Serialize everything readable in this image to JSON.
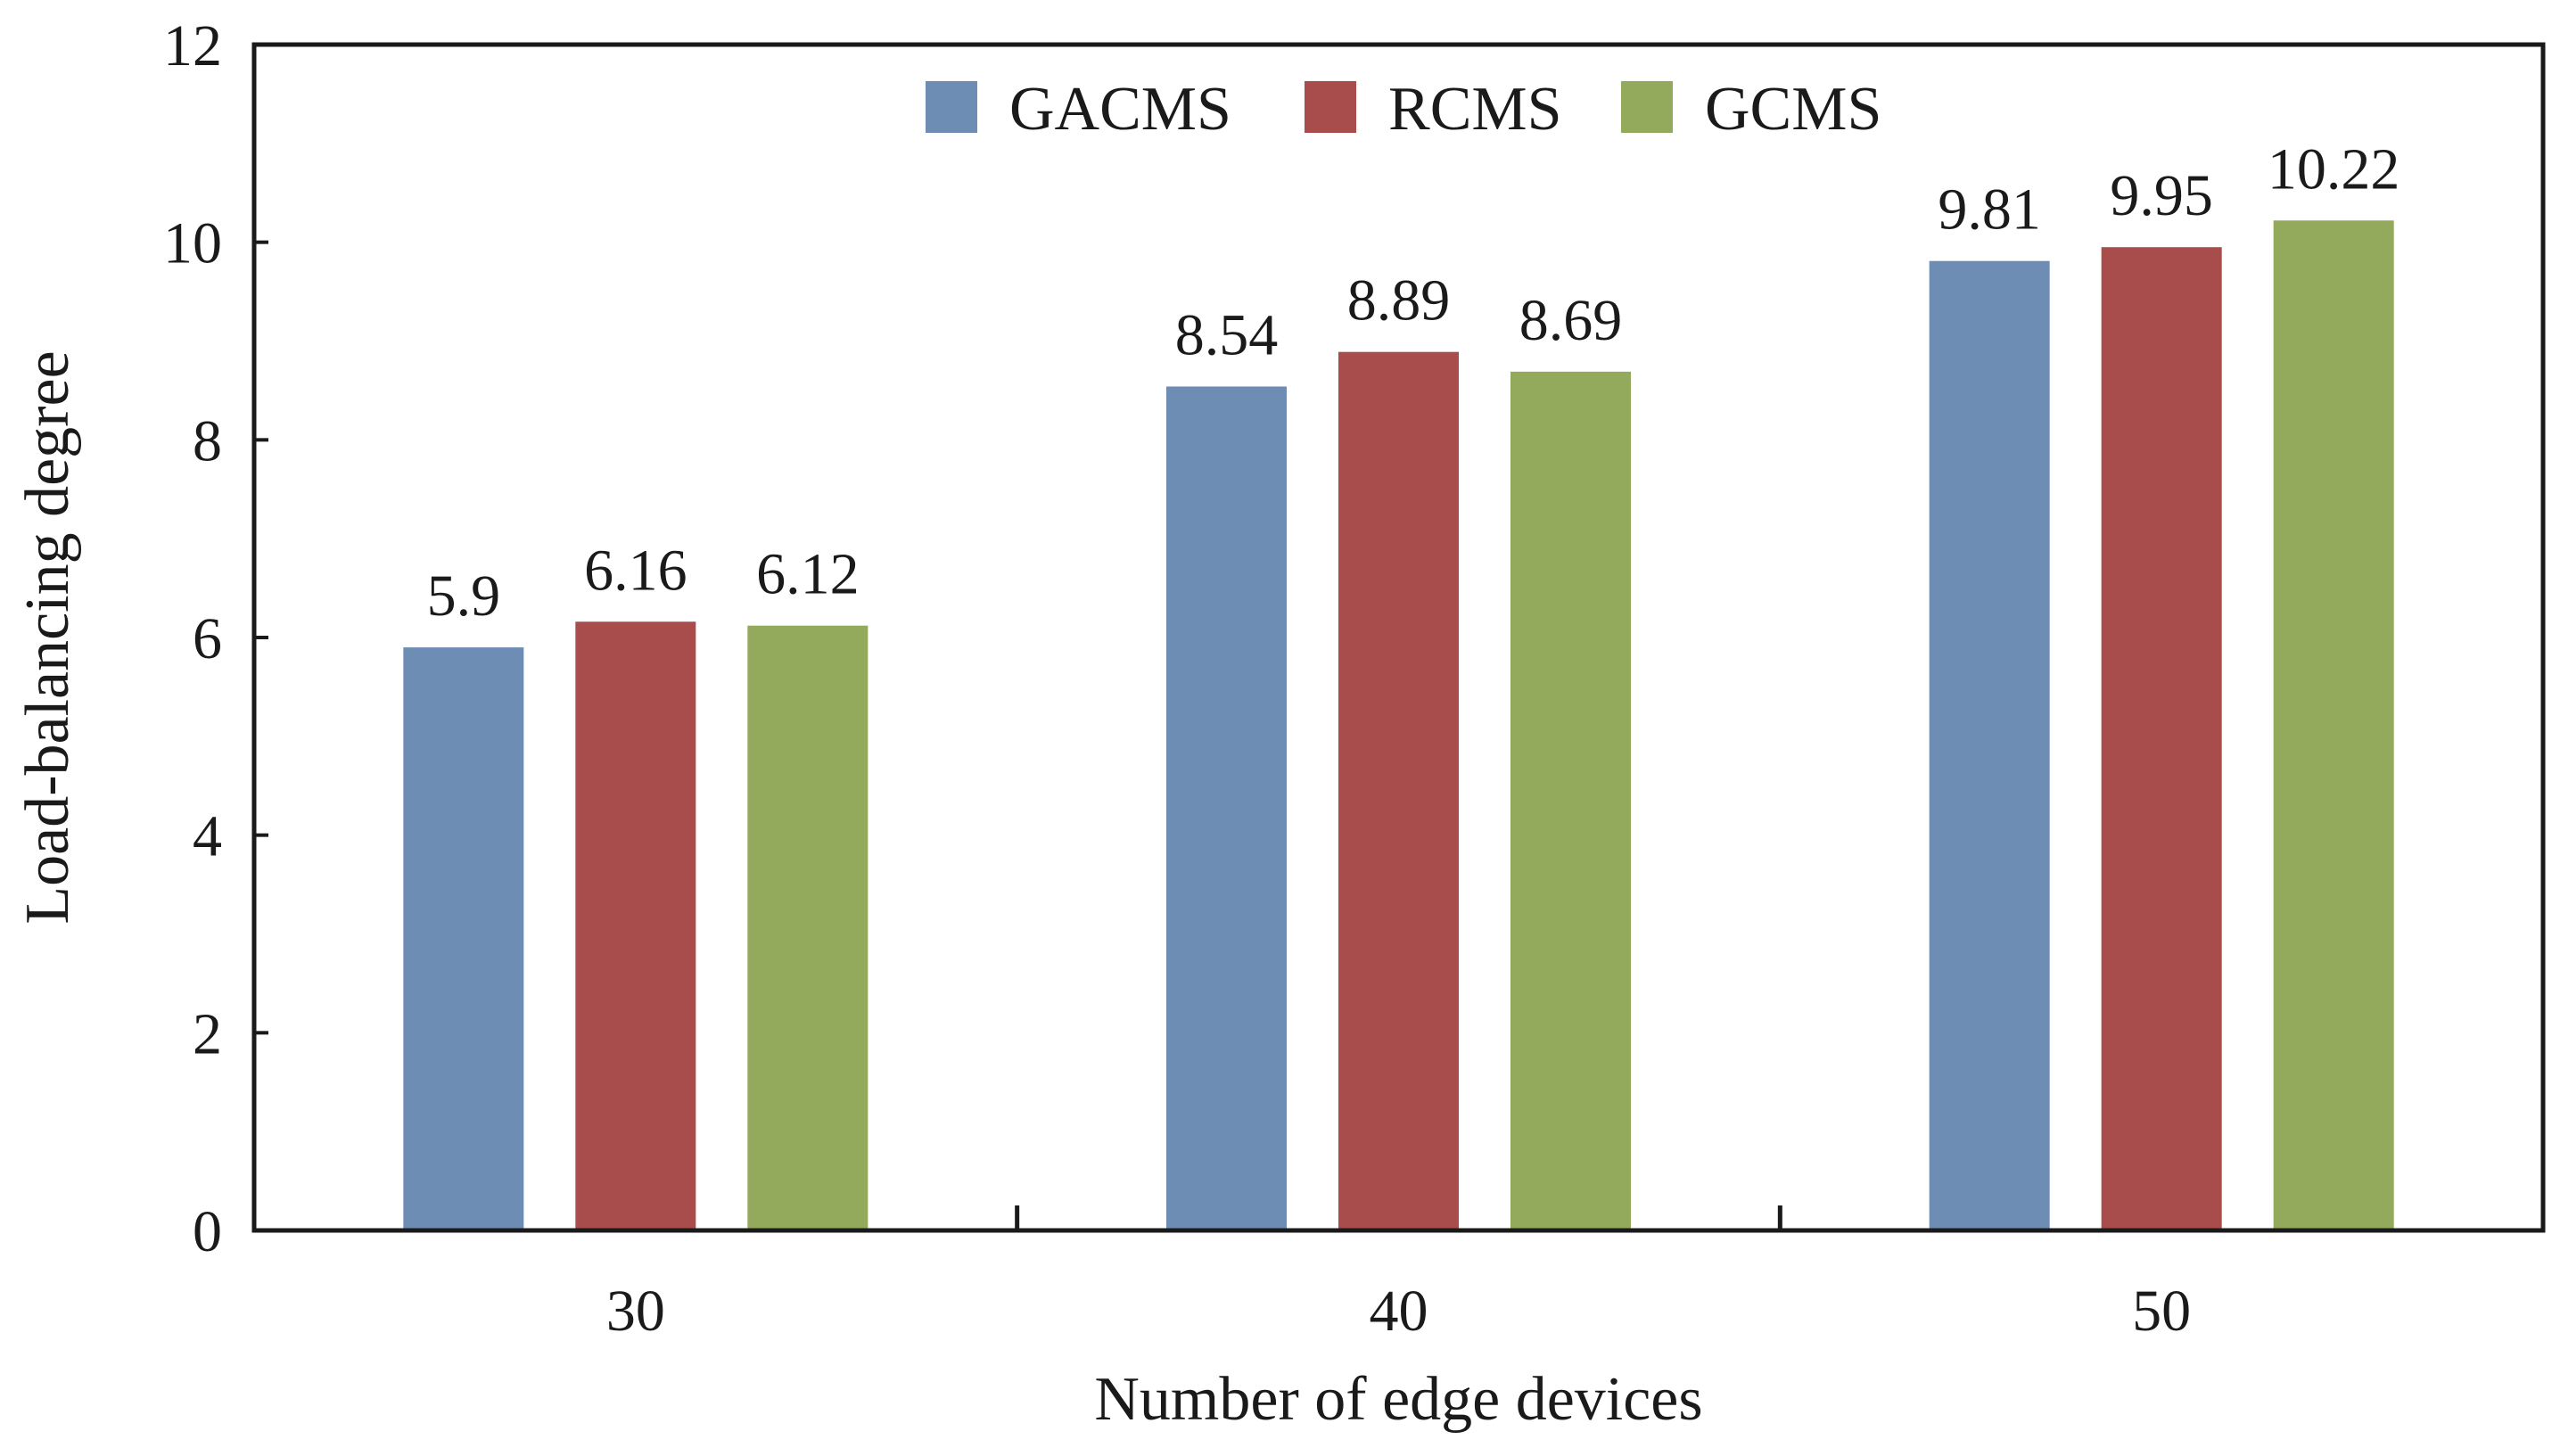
{
  "chart_data": {
    "type": "bar",
    "title": "",
    "xlabel": "Number of edge devices",
    "ylabel": "Load-balancing degree",
    "categories": [
      "30",
      "40",
      "50"
    ],
    "series": [
      {
        "name": "GACMS",
        "color": "#6d8db5",
        "values": [
          5.9,
          8.54,
          9.81
        ],
        "labels": [
          "5.9",
          "8.54",
          "9.81"
        ]
      },
      {
        "name": "RCMS",
        "color": "#a84d4b",
        "values": [
          6.16,
          8.89,
          9.95
        ],
        "labels": [
          "6.16",
          "8.89",
          "9.95"
        ]
      },
      {
        "name": "GCMS",
        "color": "#93a95c",
        "values": [
          6.12,
          8.69,
          10.22
        ],
        "labels": [
          "6.12",
          "8.69",
          "10.22"
        ]
      }
    ],
    "ylim": [
      0,
      12
    ],
    "yticks": [
      "0",
      "2",
      "4",
      "6",
      "8",
      "10",
      "12"
    ],
    "grid": false,
    "legend_position": "top-center"
  }
}
